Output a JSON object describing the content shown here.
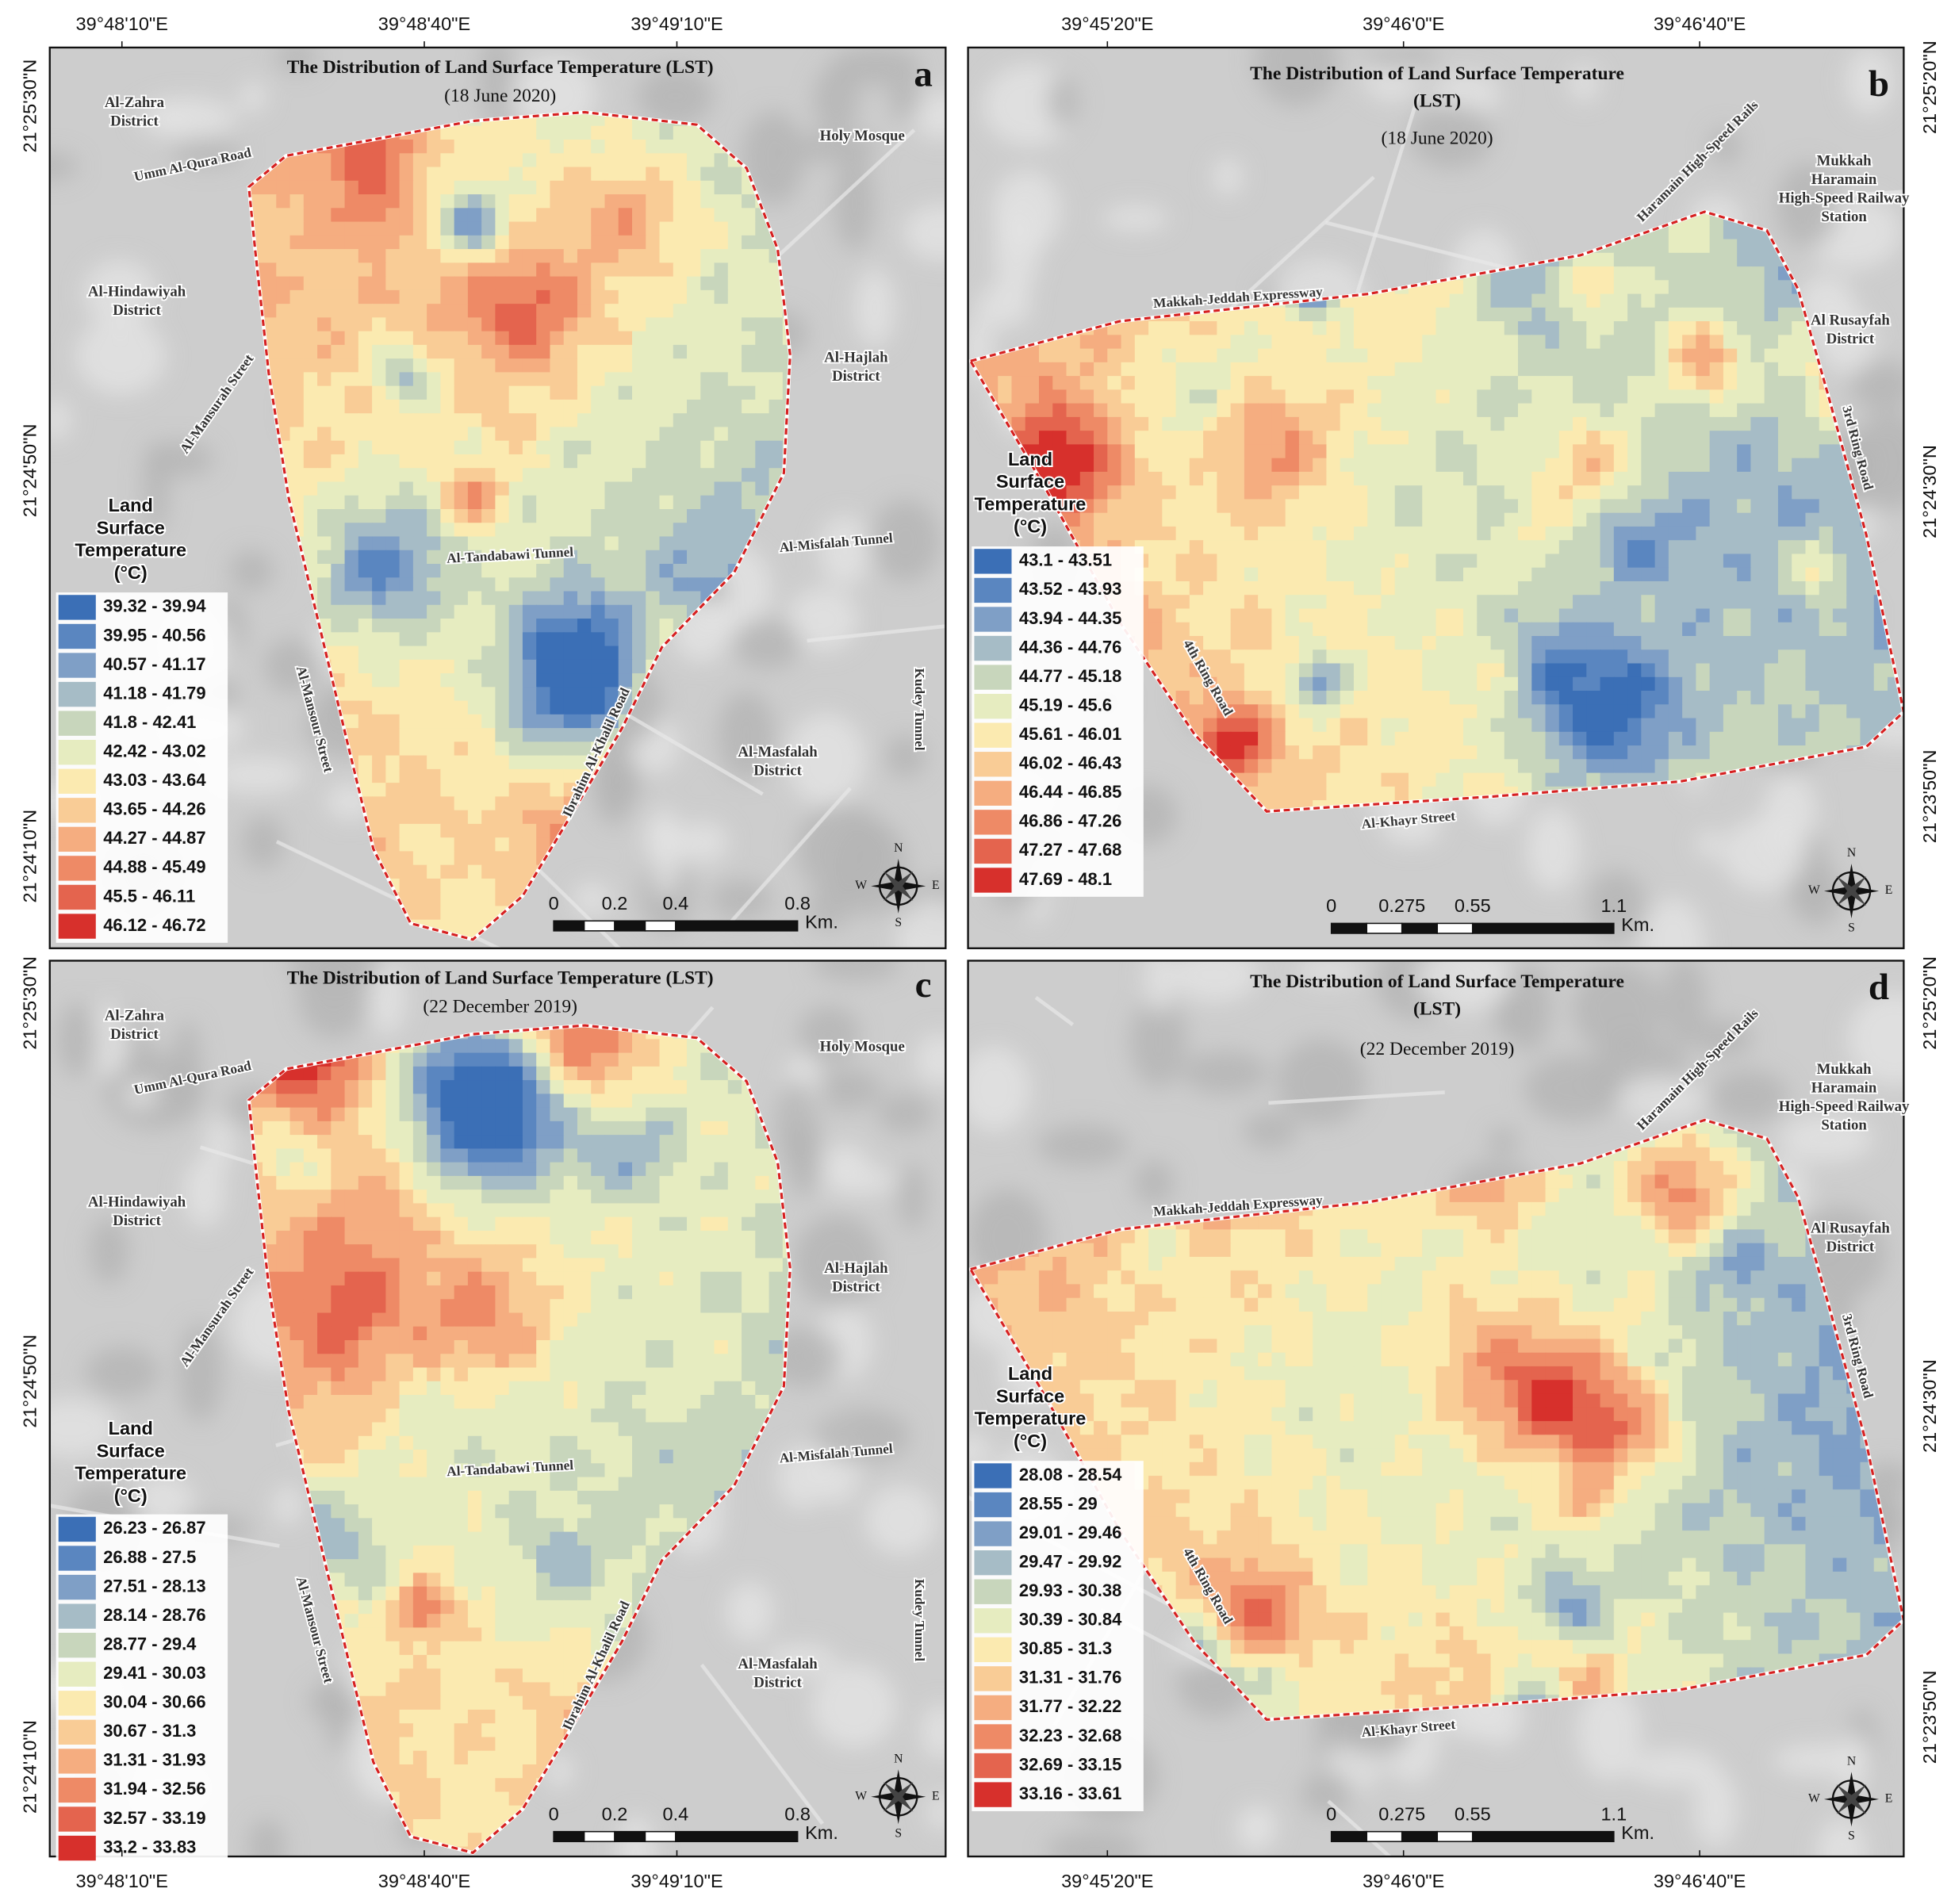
{
  "panels": [
    {
      "letter": "a",
      "title": [
        "The Distribution of Land Surface Temperature (LST)"
      ],
      "date": "(18 June 2020)",
      "top_coords": [
        "39°48'10\"E",
        "39°48'40\"E",
        "39°49'10\"E"
      ],
      "side_coords": [
        "21°25'30\"N",
        "21°24'50\"N",
        "21°24'10\"N"
      ],
      "places": [
        {
          "lines": [
            "Al-Zahra",
            "District"
          ]
        },
        {
          "lines": [
            "Umm Al-Qura Road"
          ]
        },
        {
          "lines": [
            "Holy Mosque"
          ]
        },
        {
          "lines": [
            "Al-Hindawiyah",
            "District"
          ]
        },
        {
          "lines": [
            "Al-Mansurah Street"
          ]
        },
        {
          "lines": [
            "Al-Hajlah",
            "District"
          ]
        },
        {
          "lines": [
            "Al-Tandabawi Tunnel"
          ]
        },
        {
          "lines": [
            "Al-Misfalah Tunnel"
          ]
        },
        {
          "lines": [
            "Al-Mansour Street"
          ]
        },
        {
          "lines": [
            "Ibrahim Al-Khalil Road"
          ]
        },
        {
          "lines": [
            "Al-Masfalah",
            "District"
          ]
        },
        {
          "lines": [
            "Kudey Tunnel"
          ]
        }
      ],
      "legend": {
        "title": [
          "Land",
          "Surface",
          "Temperature",
          "(°C)"
        ],
        "entries": [
          "39.32 - 39.94",
          "39.95 - 40.56",
          "40.57 - 41.17",
          "41.18 - 41.79",
          "41.8 - 42.41",
          "42.42 - 43.02",
          "43.03 - 43.64",
          "43.65 - 44.26",
          "44.27 - 44.87",
          "44.88 - 45.49",
          "45.5 - 46.11",
          "46.12 - 46.72"
        ],
        "colors": [
          "#3b6fb6",
          "#5a86c0",
          "#7f9fc6",
          "#a6bcc6",
          "#c8d6bc",
          "#e6ecc0",
          "#fbeab0",
          "#f9cc96",
          "#f5ad80",
          "#ee8a66",
          "#e4644e",
          "#d7302c"
        ]
      },
      "scale": {
        "labels": [
          0,
          0.2,
          0.4,
          0.8
        ],
        "unit": "Km."
      },
      "compass": [
        "N",
        "E",
        "S",
        "W"
      ]
    },
    {
      "letter": "b",
      "title": [
        "The Distribution of Land Surface Temperature",
        "(LST)"
      ],
      "date": "(18 June 2020)",
      "top_coords": [
        "39°45'20\"E",
        "39°46'0\"E",
        "39°46'40\"E"
      ],
      "side_coords": [
        "21°25'20\"N",
        "21°24'30\"N",
        "21°23'50\"N"
      ],
      "places": [
        {
          "lines": [
            "Haramain High-Speed Rails"
          ]
        },
        {
          "lines": [
            "Mukkah",
            "Haramain",
            "High-Speed Railway",
            "Station"
          ]
        },
        {
          "lines": [
            "Makkah-Jeddah Expressway"
          ]
        },
        {
          "lines": [
            "Al Rusayfah",
            "District"
          ]
        },
        {
          "lines": [
            "3rd Ring Road"
          ]
        },
        {
          "lines": [
            "4th Ring Road"
          ]
        },
        {
          "lines": [
            "Al-Khayr Street"
          ]
        }
      ],
      "legend": {
        "title": [
          "Land",
          "Surface",
          "Temperature",
          "(°C)"
        ],
        "entries": [
          "43.1 - 43.51",
          "43.52 - 43.93",
          "43.94 - 44.35",
          "44.36 - 44.76",
          "44.77 - 45.18",
          "45.19 - 45.6",
          "45.61 - 46.01",
          "46.02 - 46.43",
          "46.44 - 46.85",
          "46.86 - 47.26",
          "47.27 - 47.68",
          "47.69 - 48.1"
        ],
        "colors": [
          "#3b6fb6",
          "#5a86c0",
          "#7f9fc6",
          "#a6bcc6",
          "#c8d6bc",
          "#e6ecc0",
          "#fbeab0",
          "#f9cc96",
          "#f5ad80",
          "#ee8a66",
          "#e4644e",
          "#d7302c"
        ]
      },
      "scale": {
        "labels": [
          0,
          0.275,
          0.55,
          1.1
        ],
        "unit": "Km."
      },
      "compass": [
        "N",
        "E",
        "S",
        "W"
      ]
    },
    {
      "letter": "c",
      "title": [
        "The Distribution of Land Surface Temperature (LST)"
      ],
      "date": "(22 December 2019)",
      "bottom_coords": [
        "39°48'10\"E",
        "39°48'40\"E",
        "39°49'10\"E"
      ],
      "side_coords": [
        "21°25'30\"N",
        "21°24'50\"N",
        "21°24'10\"N"
      ],
      "places": [
        {
          "lines": [
            "Al-Zahra",
            "District"
          ]
        },
        {
          "lines": [
            "Umm Al-Qura Road"
          ]
        },
        {
          "lines": [
            "Holy Mosque"
          ]
        },
        {
          "lines": [
            "Al-Hindawiyah",
            "District"
          ]
        },
        {
          "lines": [
            "Al-Mansurah Street"
          ]
        },
        {
          "lines": [
            "Al-Hajlah",
            "District"
          ]
        },
        {
          "lines": [
            "Al-Tandabawi Tunnel"
          ]
        },
        {
          "lines": [
            "Al-Misfalah Tunnel"
          ]
        },
        {
          "lines": [
            "Al-Mansour Street"
          ]
        },
        {
          "lines": [
            "Ibrahim Al-Khalil Road"
          ]
        },
        {
          "lines": [
            "Al-Masfalah",
            "District"
          ]
        },
        {
          "lines": [
            "Kudey Tunnel"
          ]
        }
      ],
      "legend": {
        "title": [
          "Land",
          "Surface",
          "Temperature",
          "(°C)"
        ],
        "entries": [
          "26.23 - 26.87",
          "26.88 - 27.5",
          "27.51 - 28.13",
          "28.14 - 28.76",
          "28.77 - 29.4",
          "29.41 - 30.03",
          "30.04 - 30.66",
          "30.67 - 31.3",
          "31.31 - 31.93",
          "31.94 - 32.56",
          "32.57 - 33.19",
          "33.2 - 33.83"
        ],
        "colors": [
          "#3b6fb6",
          "#5a86c0",
          "#7f9fc6",
          "#a6bcc6",
          "#c8d6bc",
          "#e6ecc0",
          "#fbeab0",
          "#f9cc96",
          "#f5ad80",
          "#ee8a66",
          "#e4644e",
          "#d7302c"
        ]
      },
      "scale": {
        "labels": [
          0,
          0.2,
          0.4,
          0.8
        ],
        "unit": "Km."
      },
      "compass": [
        "N",
        "E",
        "S",
        "W"
      ]
    },
    {
      "letter": "d",
      "title": [
        "The Distribution of Land Surface Temperature",
        "(LST)"
      ],
      "date": "(22 December 2019)",
      "bottom_coords": [
        "39°45'20\"E",
        "39°46'0\"E",
        "39°46'40\"E"
      ],
      "side_coords": [
        "21°25'20\"N",
        "21°24'30\"N",
        "21°23'50\"N"
      ],
      "places": [
        {
          "lines": [
            "Haramain High-Speed Rails"
          ]
        },
        {
          "lines": [
            "Mukkah",
            "Haramain",
            "High-Speed Railway",
            "Station"
          ]
        },
        {
          "lines": [
            "Makkah-Jeddah Expressway"
          ]
        },
        {
          "lines": [
            "Al Rusayfah",
            "District"
          ]
        },
        {
          "lines": [
            "3rd Ring Road"
          ]
        },
        {
          "lines": [
            "4th Ring Road"
          ]
        },
        {
          "lines": [
            "Al-Khayr Street"
          ]
        }
      ],
      "legend": {
        "title": [
          "Land",
          "Surface",
          "Temperature",
          "(°C)"
        ],
        "entries": [
          "28.08 - 28.54",
          "28.55 - 29",
          "29.01 - 29.46",
          "29.47 - 29.92",
          "29.93 - 30.38",
          "30.39 - 30.84",
          "30.85 - 31.3",
          "31.31 - 31.76",
          "31.77 - 32.22",
          "32.23 - 32.68",
          "32.69 - 33.15",
          "33.16 - 33.61"
        ],
        "colors": [
          "#3b6fb6",
          "#5a86c0",
          "#7f9fc6",
          "#a6bcc6",
          "#c8d6bc",
          "#e6ecc0",
          "#fbeab0",
          "#f9cc96",
          "#f5ad80",
          "#ee8a66",
          "#e4644e",
          "#d7302c"
        ]
      },
      "scale": {
        "labels": [
          0,
          0.275,
          0.55,
          1.1
        ],
        "unit": "Km."
      },
      "compass": [
        "N",
        "E",
        "S",
        "W"
      ]
    }
  ]
}
